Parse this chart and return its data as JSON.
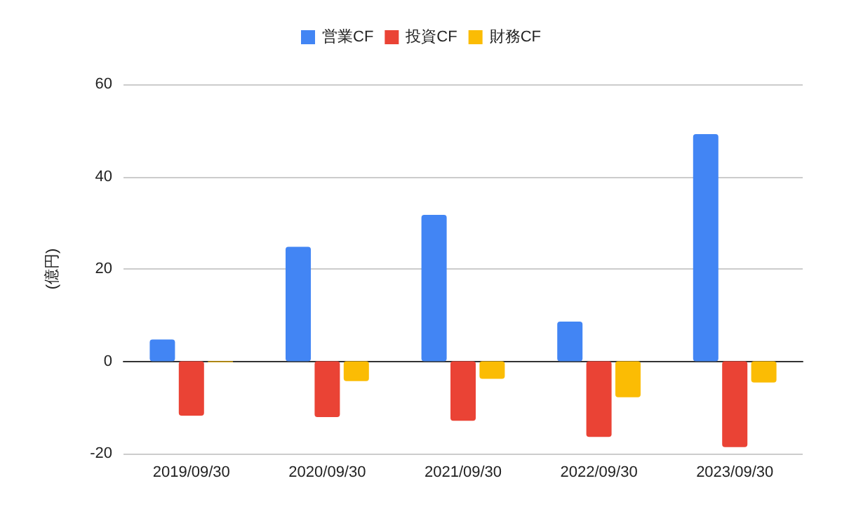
{
  "chart_data": {
    "type": "bar",
    "ylabel": "(億円)",
    "categories": [
      "2019/09/30",
      "2020/09/30",
      "2021/09/30",
      "2022/09/30",
      "2023/09/30"
    ],
    "series": [
      {
        "name": "営業CF",
        "color": "#4285f4",
        "values": [
          4.7,
          24.8,
          31.7,
          8.6,
          49.2
        ]
      },
      {
        "name": "投資CF",
        "color": "#ea4335",
        "values": [
          -11.8,
          -12.1,
          -12.9,
          -16.4,
          -18.6
        ]
      },
      {
        "name": "財務CF",
        "color": "#fbbc04",
        "values": [
          -0.2,
          -4.3,
          -3.8,
          -7.8,
          -4.6
        ]
      }
    ],
    "ylim": [
      -20,
      60
    ],
    "yticks": [
      -20,
      0,
      20,
      40,
      60
    ],
    "grid": "y",
    "legend": "top"
  }
}
